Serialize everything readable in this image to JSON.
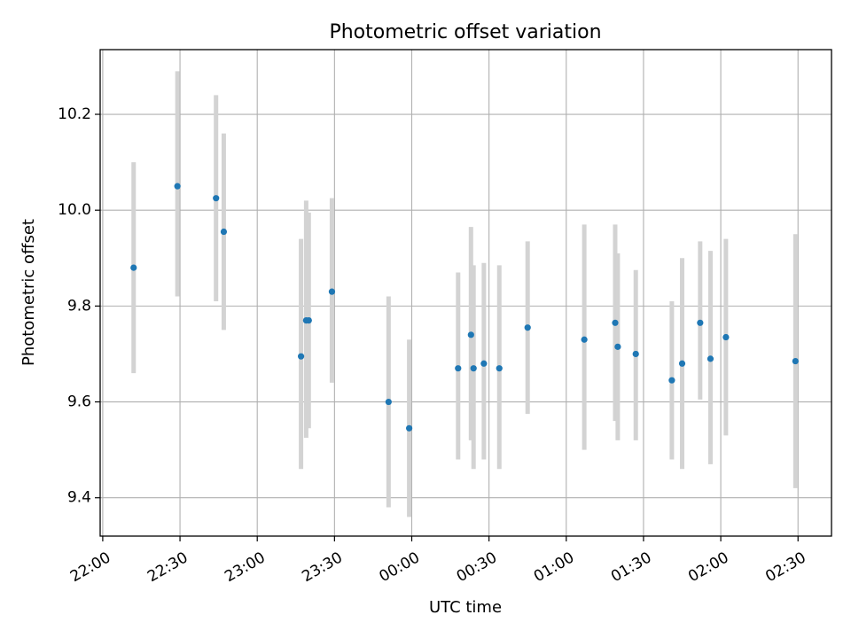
{
  "chart_data": {
    "type": "scatter",
    "title": "Photometric offset variation",
    "xlabel": "UTC time",
    "ylabel": "Photometric offset",
    "x_ticks": [
      "22:00",
      "22:30",
      "23:00",
      "23:30",
      "00:00",
      "00:30",
      "01:00",
      "01:30",
      "02:00",
      "02:30"
    ],
    "y_ticks": [
      "9.4",
      "9.6",
      "9.8",
      "10.0",
      "10.2"
    ],
    "xlim": [
      "21:59",
      "02:43"
    ],
    "ylim": [
      9.32,
      10.335
    ],
    "grid": true,
    "marker_color": "#1f77b4",
    "errorbar_color": "#d3d3d3",
    "points": [
      {
        "x": "22:12",
        "y": 9.88,
        "lower": 9.66,
        "upper": 10.1
      },
      {
        "x": "22:29",
        "y": 10.05,
        "lower": 9.82,
        "upper": 10.29
      },
      {
        "x": "22:44",
        "y": 10.025,
        "lower": 9.81,
        "upper": 10.24
      },
      {
        "x": "22:47",
        "y": 9.955,
        "lower": 9.75,
        "upper": 10.16
      },
      {
        "x": "23:17",
        "y": 9.695,
        "lower": 9.46,
        "upper": 9.94
      },
      {
        "x": "23:19",
        "y": 9.77,
        "lower": 9.525,
        "upper": 10.02
      },
      {
        "x": "23:20",
        "y": 9.77,
        "lower": 9.545,
        "upper": 9.995
      },
      {
        "x": "23:29",
        "y": 9.83,
        "lower": 9.64,
        "upper": 10.025
      },
      {
        "x": "23:51",
        "y": 9.6,
        "lower": 9.38,
        "upper": 9.82
      },
      {
        "x": "23:59",
        "y": 9.545,
        "lower": 9.36,
        "upper": 9.73
      },
      {
        "x": "00:18",
        "y": 9.67,
        "lower": 9.48,
        "upper": 9.87
      },
      {
        "x": "00:23",
        "y": 9.74,
        "lower": 9.52,
        "upper": 9.965
      },
      {
        "x": "00:24",
        "y": 9.67,
        "lower": 9.46,
        "upper": 9.885
      },
      {
        "x": "00:28",
        "y": 9.68,
        "lower": 9.48,
        "upper": 9.89
      },
      {
        "x": "00:34",
        "y": 9.67,
        "lower": 9.46,
        "upper": 9.885
      },
      {
        "x": "00:45",
        "y": 9.755,
        "lower": 9.575,
        "upper": 9.935
      },
      {
        "x": "01:07",
        "y": 9.73,
        "lower": 9.5,
        "upper": 9.97
      },
      {
        "x": "01:19",
        "y": 9.765,
        "lower": 9.56,
        "upper": 9.97
      },
      {
        "x": "01:20",
        "y": 9.715,
        "lower": 9.52,
        "upper": 9.91
      },
      {
        "x": "01:27",
        "y": 9.7,
        "lower": 9.52,
        "upper": 9.875
      },
      {
        "x": "01:41",
        "y": 9.645,
        "lower": 9.48,
        "upper": 9.81
      },
      {
        "x": "01:45",
        "y": 9.68,
        "lower": 9.46,
        "upper": 9.9
      },
      {
        "x": "01:52",
        "y": 9.765,
        "lower": 9.605,
        "upper": 9.935
      },
      {
        "x": "01:56",
        "y": 9.69,
        "lower": 9.47,
        "upper": 9.915
      },
      {
        "x": "02:02",
        "y": 9.735,
        "lower": 9.53,
        "upper": 9.94
      },
      {
        "x": "02:29",
        "y": 9.685,
        "lower": 9.42,
        "upper": 9.95
      }
    ]
  }
}
